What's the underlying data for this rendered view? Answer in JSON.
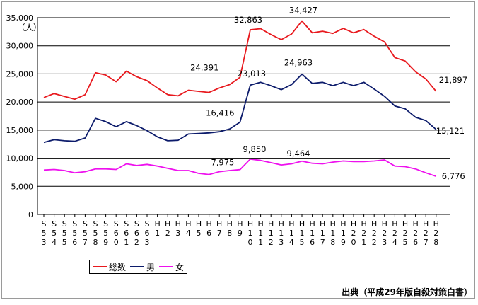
{
  "chart_data": {
    "type": "line",
    "unit_label": "（人）",
    "categories": [
      [
        "S",
        "5",
        "3"
      ],
      [
        "S",
        "5",
        "4"
      ],
      [
        "S",
        "5",
        "5"
      ],
      [
        "S",
        "5",
        "6"
      ],
      [
        "S",
        "5",
        "7"
      ],
      [
        "S",
        "5",
        "8"
      ],
      [
        "S",
        "5",
        "9"
      ],
      [
        "S",
        "6",
        "0"
      ],
      [
        "S",
        "6",
        "1"
      ],
      [
        "S",
        "6",
        "2"
      ],
      [
        "S",
        "6",
        "3"
      ],
      [
        "H",
        "1"
      ],
      [
        "H",
        "2"
      ],
      [
        "H",
        "3"
      ],
      [
        "H",
        "4"
      ],
      [
        "H",
        "5"
      ],
      [
        "H",
        "6"
      ],
      [
        "H",
        "7"
      ],
      [
        "H",
        "8"
      ],
      [
        "H",
        "9"
      ],
      [
        "H",
        "1",
        "0"
      ],
      [
        "H",
        "1",
        "1"
      ],
      [
        "H",
        "1",
        "2"
      ],
      [
        "H",
        "1",
        "3"
      ],
      [
        "H",
        "1",
        "4"
      ],
      [
        "H",
        "1",
        "5"
      ],
      [
        "H",
        "1",
        "6"
      ],
      [
        "H",
        "1",
        "7"
      ],
      [
        "H",
        "1",
        "8"
      ],
      [
        "H",
        "1",
        "9"
      ],
      [
        "H",
        "2",
        "0"
      ],
      [
        "H",
        "2",
        "1"
      ],
      [
        "H",
        "2",
        "2"
      ],
      [
        "H",
        "2",
        "3"
      ],
      [
        "H",
        "2",
        "4"
      ],
      [
        "H",
        "2",
        "5"
      ],
      [
        "H",
        "2",
        "6"
      ],
      [
        "H",
        "2",
        "7"
      ],
      [
        "H",
        "2",
        "8"
      ]
    ],
    "ylim": [
      0,
      35000
    ],
    "yticks": [
      0,
      5000,
      10000,
      15000,
      20000,
      25000,
      30000,
      35000
    ],
    "ytick_labels": [
      "0",
      "5,000",
      "10,000",
      "15,000",
      "20,000",
      "25,000",
      "30,000",
      "35,000"
    ],
    "grid": true,
    "series": [
      {
        "name": "総数",
        "color": "#e8191e",
        "values": [
          20800,
          21500,
          21000,
          20500,
          21300,
          25200,
          24800,
          23600,
          25500,
          24500,
          23800,
          22500,
          21300,
          21100,
          22100,
          21900,
          21700,
          22500,
          23100,
          24391,
          32863,
          33050,
          32000,
          31100,
          32100,
          34427,
          32300,
          32600,
          32200,
          33100,
          32300,
          32900,
          31700,
          30700,
          27900,
          27300,
          25400,
          24100,
          21897
        ]
      },
      {
        "name": "男",
        "color": "#0c1b6b",
        "values": [
          12800,
          13300,
          13100,
          13000,
          13600,
          17100,
          16500,
          15600,
          16500,
          15800,
          14900,
          13800,
          13100,
          13200,
          14300,
          14400,
          14500,
          14700,
          15200,
          16416,
          23013,
          23500,
          22900,
          22200,
          23100,
          24963,
          23300,
          23500,
          22900,
          23500,
          22900,
          23500,
          22300,
          21000,
          19300,
          18800,
          17300,
          16700,
          15121
        ]
      },
      {
        "name": "女",
        "color": "#ee11ee",
        "values": [
          7900,
          8000,
          7800,
          7400,
          7600,
          8100,
          8100,
          8000,
          9000,
          8700,
          8900,
          8600,
          8200,
          7800,
          7800,
          7300,
          7100,
          7600,
          7800,
          7975,
          9850,
          9600,
          9200,
          8800,
          9000,
          9464,
          9100,
          9000,
          9300,
          9500,
          9400,
          9400,
          9500,
          9700,
          8600,
          8500,
          8100,
          7400,
          6776
        ]
      }
    ],
    "annotations": [
      {
        "text": "32,863",
        "series": 0,
        "index": 20
      },
      {
        "text": "34,427",
        "series": 0,
        "index": 25
      },
      {
        "text": "24,391",
        "series": 0,
        "index": 19
      },
      {
        "text": "21,897",
        "series": 0,
        "index": 38
      },
      {
        "text": "23,013",
        "series": 1,
        "index": 20
      },
      {
        "text": "24,963",
        "series": 1,
        "index": 25
      },
      {
        "text": "16,416",
        "series": 1,
        "index": 19
      },
      {
        "text": "15,121",
        "series": 1,
        "index": 38
      },
      {
        "text": "9,850",
        "series": 2,
        "index": 20
      },
      {
        "text": "9,464",
        "series": 2,
        "index": 25
      },
      {
        "text": "7,975",
        "series": 2,
        "index": 19
      },
      {
        "text": "6,776",
        "series": 2,
        "index": 38
      }
    ],
    "legend_position": "bottom-left"
  },
  "source_note": "出典（平成29年版自殺対策白書）"
}
